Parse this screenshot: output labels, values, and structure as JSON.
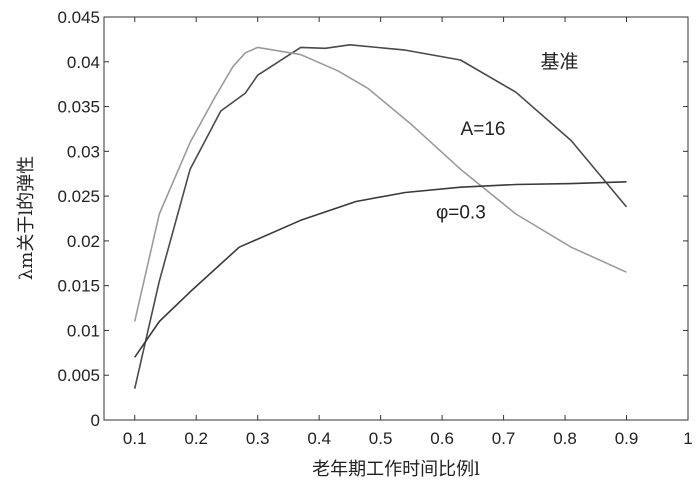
{
  "chart_data": {
    "type": "line",
    "xlabel": "老年期工作时间比例l",
    "ylabel": "λm关于l的弹性",
    "xlim": [
      0.05,
      1.0
    ],
    "ylim": [
      0,
      0.045
    ],
    "xticks": [
      "0.1",
      "0.2",
      "0.3",
      "0.4",
      "0.5",
      "0.6",
      "0.7",
      "0.8",
      "0.9",
      "1"
    ],
    "yticks": [
      "0",
      "0.005",
      "0.01",
      "0.015",
      "0.02",
      "0.025",
      "0.03",
      "0.035",
      "0.04",
      "0.045"
    ],
    "series": [
      {
        "name": "基准",
        "color": "#4a4a4a",
        "x": [
          0.1,
          0.14,
          0.19,
          0.24,
          0.28,
          0.3,
          0.37,
          0.41,
          0.45,
          0.54,
          0.63,
          0.72,
          0.81,
          0.9
        ],
        "y": [
          0.0035,
          0.0155,
          0.028,
          0.0345,
          0.0365,
          0.0385,
          0.0416,
          0.0415,
          0.0419,
          0.0413,
          0.0402,
          0.0366,
          0.0312,
          0.0238
        ]
      },
      {
        "name": "A=16",
        "color": "#9b9b9b",
        "x": [
          0.1,
          0.14,
          0.19,
          0.23,
          0.26,
          0.28,
          0.3,
          0.37,
          0.43,
          0.48,
          0.55,
          0.63,
          0.72,
          0.81,
          0.9
        ],
        "y": [
          0.011,
          0.023,
          0.031,
          0.036,
          0.0395,
          0.041,
          0.0416,
          0.0408,
          0.039,
          0.037,
          0.033,
          0.028,
          0.023,
          0.0193,
          0.0165
        ]
      },
      {
        "name": "φ=0.3",
        "color": "#3a3a3a",
        "x": [
          0.1,
          0.14,
          0.19,
          0.27,
          0.37,
          0.46,
          0.54,
          0.63,
          0.72,
          0.81,
          0.9
        ],
        "y": [
          0.007,
          0.011,
          0.0143,
          0.0193,
          0.0223,
          0.0244,
          0.0254,
          0.026,
          0.0263,
          0.0264,
          0.0266
        ]
      }
    ],
    "annotations": [
      {
        "label": "基准",
        "x": 0.76,
        "y": 0.0393
      },
      {
        "label": "A=16",
        "x": 0.63,
        "y": 0.0318
      },
      {
        "label": "φ=0.3",
        "x": 0.59,
        "y": 0.0225
      }
    ]
  }
}
